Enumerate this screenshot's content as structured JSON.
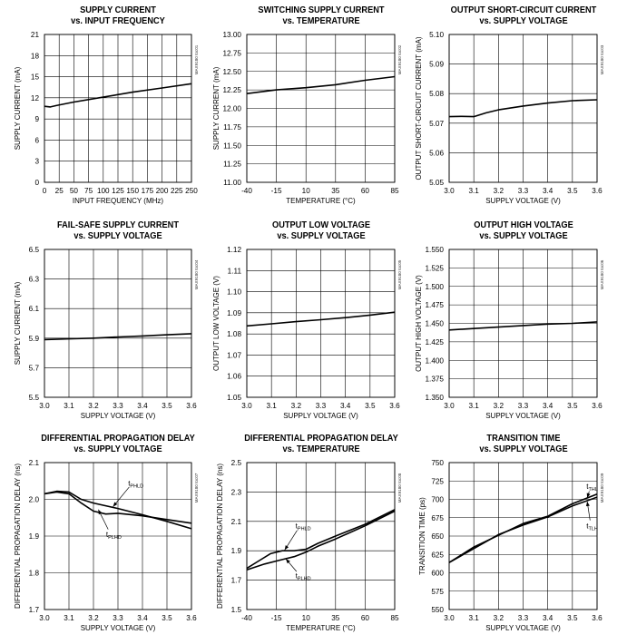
{
  "chart_data": [
    {
      "type": "line",
      "title": "SUPPLY CURRENT",
      "subtitle": "vs. INPUT FREQUENCY",
      "xlabel": "INPUT FREQUENCY (MHz)",
      "ylabel": "SUPPLY CURRENT (mA)",
      "code": "MAX9180 toc01",
      "xlim": [
        0,
        250
      ],
      "ylim": [
        0,
        21
      ],
      "xticks": [
        0,
        25,
        50,
        75,
        100,
        125,
        150,
        175,
        200,
        225,
        250
      ],
      "yticks": [
        0,
        3,
        6,
        9,
        12,
        15,
        18,
        21
      ],
      "ytick_decimals": 0,
      "grid": true,
      "series": [
        {
          "x": [
            0,
            10,
            20,
            50,
            100,
            150,
            200,
            250
          ],
          "y": [
            10.8,
            10.7,
            10.9,
            11.4,
            12.1,
            12.8,
            13.4,
            14.0
          ]
        }
      ],
      "labels": []
    },
    {
      "type": "line",
      "title": "SWITCHING SUPPLY CURRENT",
      "subtitle": "vs. TEMPERATURE",
      "xlabel": "TEMPERATURE (°C)",
      "ylabel": "SUPPLY CURRENT (mA)",
      "code": "MAX9180 toc02",
      "xlim": [
        -40,
        85
      ],
      "ylim": [
        11.0,
        13.0
      ],
      "xticks": [
        -40,
        -15,
        10,
        35,
        60,
        85
      ],
      "yticks": [
        11.0,
        11.25,
        11.5,
        11.75,
        12.0,
        12.25,
        12.5,
        12.75,
        13.0
      ],
      "ytick_decimals": 2,
      "grid": true,
      "series": [
        {
          "x": [
            -40,
            -15,
            10,
            35,
            60,
            85
          ],
          "y": [
            12.2,
            12.25,
            12.28,
            12.32,
            12.38,
            12.43
          ]
        }
      ],
      "labels": []
    },
    {
      "type": "line",
      "title": "OUTPUT SHORT-CIRCUIT CURRENT",
      "subtitle": "vs. SUPPLY VOLTAGE",
      "xlabel": "SUPPLY VOLTAGE (V)",
      "ylabel": "OUTPUT SHORT-CIRCUIT CURRENT (mA)",
      "code": "MAX9180 toc03",
      "xlim": [
        3.0,
        3.6
      ],
      "ylim": [
        5.05,
        5.1
      ],
      "xticks": [
        3.0,
        3.1,
        3.2,
        3.3,
        3.4,
        3.5,
        3.6
      ],
      "yticks": [
        5.05,
        5.06,
        5.07,
        5.08,
        5.09,
        5.1
      ],
      "ytick_decimals": 2,
      "xtick_decimals": 1,
      "grid": true,
      "series": [
        {
          "x": [
            3.0,
            3.05,
            3.1,
            3.15,
            3.2,
            3.3,
            3.4,
            3.5,
            3.6
          ],
          "y": [
            5.0722,
            5.0723,
            5.0722,
            5.0735,
            5.0745,
            5.0758,
            5.0768,
            5.0776,
            5.0779
          ]
        }
      ],
      "labels": []
    },
    {
      "type": "line",
      "title": "FAIL-SAFE SUPPLY CURRENT",
      "subtitle": "vs. SUPPLY VOLTAGE",
      "xlabel": "SUPPLY VOLTAGE (V)",
      "ylabel": "SUPPLY CURRENT (mA)",
      "code": "MAX9180 toc04",
      "xlim": [
        3.0,
        3.6
      ],
      "ylim": [
        5.5,
        6.5
      ],
      "xticks": [
        3.0,
        3.1,
        3.2,
        3.3,
        3.4,
        3.5,
        3.6
      ],
      "yticks": [
        5.5,
        5.7,
        5.9,
        6.1,
        6.3,
        6.5
      ],
      "ytick_decimals": 1,
      "xtick_decimals": 1,
      "grid": true,
      "series": [
        {
          "x": [
            3.0,
            3.1,
            3.2,
            3.3,
            3.4,
            3.5,
            3.6
          ],
          "y": [
            5.89,
            5.895,
            5.9,
            5.908,
            5.915,
            5.923,
            5.93
          ]
        }
      ],
      "labels": []
    },
    {
      "type": "line",
      "title": "OUTPUT LOW VOLTAGE",
      "subtitle": "vs. SUPPLY VOLTAGE",
      "xlabel": "SUPPLY VOLTAGE (V)",
      "ylabel": "OUTPUT LOW VOLTAGE (V)",
      "code": "MAX9180 toc05",
      "xlim": [
        3.0,
        3.6
      ],
      "ylim": [
        1.05,
        1.12
      ],
      "xticks": [
        3.0,
        3.1,
        3.2,
        3.3,
        3.4,
        3.5,
        3.6
      ],
      "yticks": [
        1.05,
        1.06,
        1.07,
        1.08,
        1.09,
        1.1,
        1.11,
        1.12
      ],
      "ytick_decimals": 2,
      "xtick_decimals": 1,
      "grid": true,
      "series": [
        {
          "x": [
            3.0,
            3.1,
            3.2,
            3.3,
            3.4,
            3.5,
            3.6
          ],
          "y": [
            1.0838,
            1.0848,
            1.0858,
            1.0867,
            1.0877,
            1.0889,
            1.0903
          ]
        }
      ],
      "labels": []
    },
    {
      "type": "line",
      "title": "OUTPUT HIGH VOLTAGE",
      "subtitle": "vs. SUPPLY VOLTAGE",
      "xlabel": "SUPPLY VOLTAGE (V)",
      "ylabel": "OUTPUT HIGH VOLTAGE (V)",
      "code": "MAX9180 toc06",
      "xlim": [
        3.0,
        3.6
      ],
      "ylim": [
        1.35,
        1.55
      ],
      "xticks": [
        3.0,
        3.1,
        3.2,
        3.3,
        3.4,
        3.5,
        3.6
      ],
      "yticks": [
        1.35,
        1.375,
        1.4,
        1.425,
        1.45,
        1.475,
        1.5,
        1.525,
        1.55
      ],
      "ytick_decimals": 3,
      "xtick_decimals": 1,
      "grid": true,
      "series": [
        {
          "x": [
            3.0,
            3.1,
            3.2,
            3.3,
            3.4,
            3.5,
            3.6
          ],
          "y": [
            1.441,
            1.443,
            1.445,
            1.447,
            1.449,
            1.45,
            1.452
          ]
        }
      ],
      "labels": []
    },
    {
      "type": "line",
      "title": "DIFFERENTIAL PROPAGATION DELAY",
      "subtitle": "vs. SUPPLY VOLTAGE",
      "xlabel": "SUPPLY VOLTAGE (V)",
      "ylabel": "DIFFERENTIAL PROPAGATION DELAY (ns)",
      "code": "MAX9180 toc07",
      "xlim": [
        3.0,
        3.6
      ],
      "ylim": [
        1.7,
        2.1
      ],
      "xticks": [
        3.0,
        3.1,
        3.2,
        3.3,
        3.4,
        3.5,
        3.6
      ],
      "yticks": [
        1.7,
        1.8,
        1.9,
        2.0,
        2.1
      ],
      "ytick_decimals": 1,
      "xtick_decimals": 1,
      "grid": true,
      "series": [
        {
          "x": [
            3.0,
            3.05,
            3.1,
            3.15,
            3.2,
            3.3,
            3.4,
            3.5,
            3.6
          ],
          "y": [
            2.015,
            2.022,
            2.02,
            2.0,
            1.99,
            1.975,
            1.958,
            1.94,
            1.92
          ]
        },
        {
          "x": [
            3.0,
            3.05,
            3.1,
            3.15,
            3.2,
            3.25,
            3.3,
            3.4,
            3.5,
            3.6
          ],
          "y": [
            2.015,
            2.02,
            2.015,
            1.99,
            1.968,
            1.96,
            1.962,
            1.955,
            1.945,
            1.935
          ]
        }
      ],
      "labels": [
        {
          "main": "t",
          "sub": "PHLD",
          "tx": 3.36,
          "ty": 2.045,
          "ax": 3.28,
          "ay": 1.98
        },
        {
          "main": "t",
          "sub": "PLHD",
          "tx": 3.27,
          "ty": 1.905,
          "ax": 3.22,
          "ay": 1.972
        }
      ]
    },
    {
      "type": "line",
      "title": "DIFFERENTIAL PROPAGATION DELAY",
      "subtitle": "vs. TEMPERATURE",
      "xlabel": "TEMPERATURE (°C)",
      "ylabel": "DIFFERENTIAL PROPAGATION DELAY (ns)",
      "code": "MAX9180 toc08",
      "xlim": [
        -40,
        85
      ],
      "ylim": [
        1.5,
        2.5
      ],
      "xticks": [
        -40,
        -15,
        10,
        35,
        60,
        85
      ],
      "yticks": [
        1.5,
        1.7,
        1.9,
        2.1,
        2.3,
        2.5
      ],
      "ytick_decimals": 1,
      "grid": true,
      "series": [
        {
          "x": [
            -40,
            -30,
            -20,
            -10,
            0,
            10,
            20,
            35,
            60,
            85
          ],
          "y": [
            1.78,
            1.83,
            1.88,
            1.9,
            1.9,
            1.91,
            1.95,
            2.0,
            2.08,
            2.18
          ]
        },
        {
          "x": [
            -40,
            -25,
            -10,
            0,
            10,
            20,
            35,
            60,
            85
          ],
          "y": [
            1.77,
            1.81,
            1.84,
            1.86,
            1.89,
            1.93,
            1.98,
            2.07,
            2.17
          ]
        }
      ],
      "labels": [
        {
          "main": "t",
          "sub": "PHLD",
          "tx": 5,
          "ty": 2.07,
          "ax": -8,
          "ay": 1.905
        },
        {
          "main": "t",
          "sub": "PLHD",
          "tx": 5,
          "ty": 1.73,
          "ax": -7,
          "ay": 1.845
        }
      ]
    },
    {
      "type": "line",
      "title": "TRANSITION TIME",
      "subtitle": "vs. SUPPLY VOLTAGE",
      "xlabel": "SUPPLY VOLTAGE (V)",
      "ylabel": "TRANSITION TIME (ps)",
      "code": "MAX9180 toc09",
      "xlim": [
        3.0,
        3.6
      ],
      "ylim": [
        550,
        750
      ],
      "xticks": [
        3.0,
        3.1,
        3.2,
        3.3,
        3.4,
        3.5,
        3.6
      ],
      "yticks": [
        550,
        575,
        600,
        625,
        650,
        675,
        700,
        725,
        750
      ],
      "ytick_decimals": 0,
      "xtick_decimals": 1,
      "grid": true,
      "series": [
        {
          "x": [
            3.0,
            3.1,
            3.2,
            3.3,
            3.4,
            3.5,
            3.6
          ],
          "y": [
            614,
            635,
            651,
            667,
            677,
            694,
            707
          ]
        },
        {
          "x": [
            3.0,
            3.1,
            3.2,
            3.3,
            3.4,
            3.5,
            3.6
          ],
          "y": [
            614,
            633,
            652,
            665,
            676,
            691,
            703
          ]
        }
      ],
      "labels": [
        {
          "main": "t",
          "sub": "THL",
          "tx": 3.575,
          "ty": 718,
          "ax": 3.56,
          "ay": 702
        },
        {
          "main": "t",
          "sub": "TLH",
          "tx": 3.575,
          "ty": 664,
          "ax": 3.56,
          "ay": 697
        }
      ]
    }
  ]
}
